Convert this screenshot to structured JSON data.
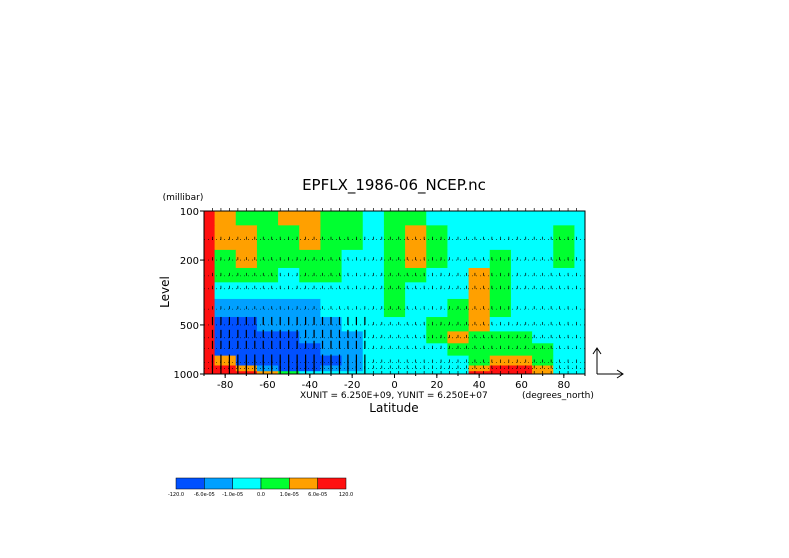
{
  "chart_data": {
    "type": "heatmap",
    "title": "EPFLX_1986-06_NCEP.nc",
    "xlabel": "Latitude",
    "xunits": "(degrees_north)",
    "ylabel": "Level",
    "yunits": "(millibar)",
    "unit_note": "XUNIT = 6.250E+09, YUNIT = 6.250E+07",
    "xlim": [
      -90,
      90
    ],
    "ylim": [
      1000,
      100
    ],
    "yscale": "log",
    "x_ticks": [
      -80,
      -60,
      -40,
      -20,
      0,
      20,
      40,
      60,
      80
    ],
    "y_ticks": [
      100,
      200,
      500,
      1000
    ],
    "grid": true,
    "legend_position": "bottom-left",
    "colorbar": {
      "labels": [
        "-120.0",
        "-6.0e-05",
        "-1.0e-05",
        "0.0",
        "1.0e-05",
        "6.0e-05",
        "120.0"
      ],
      "colors": [
        "#0050ff",
        "#00a0ff",
        "#00ffff",
        "#00ff30",
        "#ffa000",
        "#ff1010"
      ]
    },
    "x": [
      -90,
      -80,
      -70,
      -60,
      -50,
      -40,
      -30,
      -20,
      -10,
      0,
      10,
      20,
      30,
      40,
      50,
      60,
      70,
      80,
      90
    ],
    "levels": [
      100,
      150,
      200,
      250,
      300,
      400,
      500,
      600,
      700,
      850,
      925,
      1000
    ],
    "z": [
      [
        3,
        2,
        1,
        1,
        2,
        2,
        1,
        1,
        0,
        1,
        1,
        0,
        0,
        0,
        0,
        0,
        0,
        0,
        0
      ],
      [
        3,
        2,
        2,
        1,
        1,
        2,
        1,
        1,
        0,
        1,
        2,
        1,
        0,
        0,
        0,
        0,
        0,
        1,
        0
      ],
      [
        3,
        1,
        2,
        1,
        1,
        1,
        1,
        0,
        0,
        1,
        2,
        1,
        0,
        0,
        1,
        0,
        0,
        1,
        0
      ],
      [
        3,
        1,
        1,
        1,
        0,
        1,
        1,
        0,
        0,
        1,
        1,
        0,
        0,
        2,
        1,
        0,
        0,
        0,
        0
      ],
      [
        3,
        0,
        0,
        0,
        0,
        0,
        0,
        0,
        0,
        1,
        0,
        0,
        0,
        2,
        1,
        0,
        0,
        0,
        0
      ],
      [
        3,
        -1,
        -1,
        -1,
        -1,
        -1,
        0,
        0,
        0,
        1,
        0,
        0,
        1,
        2,
        1,
        0,
        0,
        0,
        0
      ],
      [
        3,
        -2,
        -2,
        -1,
        -1,
        -1,
        -1,
        0,
        0,
        0,
        0,
        1,
        1,
        2,
        0,
        0,
        0,
        0,
        0
      ],
      [
        3,
        -2,
        -2,
        -2,
        -2,
        -1,
        -1,
        -1,
        0,
        0,
        0,
        1,
        2,
        1,
        1,
        1,
        0,
        0,
        0
      ],
      [
        3,
        -2,
        -2,
        -2,
        -2,
        -2,
        -1,
        -1,
        0,
        0,
        0,
        0,
        1,
        1,
        1,
        1,
        1,
        0,
        0
      ],
      [
        3,
        2,
        -2,
        -2,
        -2,
        -2,
        -2,
        -1,
        0,
        0,
        0,
        0,
        0,
        1,
        2,
        2,
        1,
        0,
        0
      ],
      [
        3,
        3,
        2,
        -1,
        -2,
        -2,
        -1,
        -1,
        0,
        0,
        0,
        0,
        0,
        2,
        3,
        3,
        2,
        0,
        0
      ],
      [
        3,
        3,
        3,
        2,
        1,
        0,
        0,
        0,
        0,
        0,
        0,
        0,
        0,
        3,
        3,
        3,
        2,
        0,
        0
      ]
    ]
  }
}
